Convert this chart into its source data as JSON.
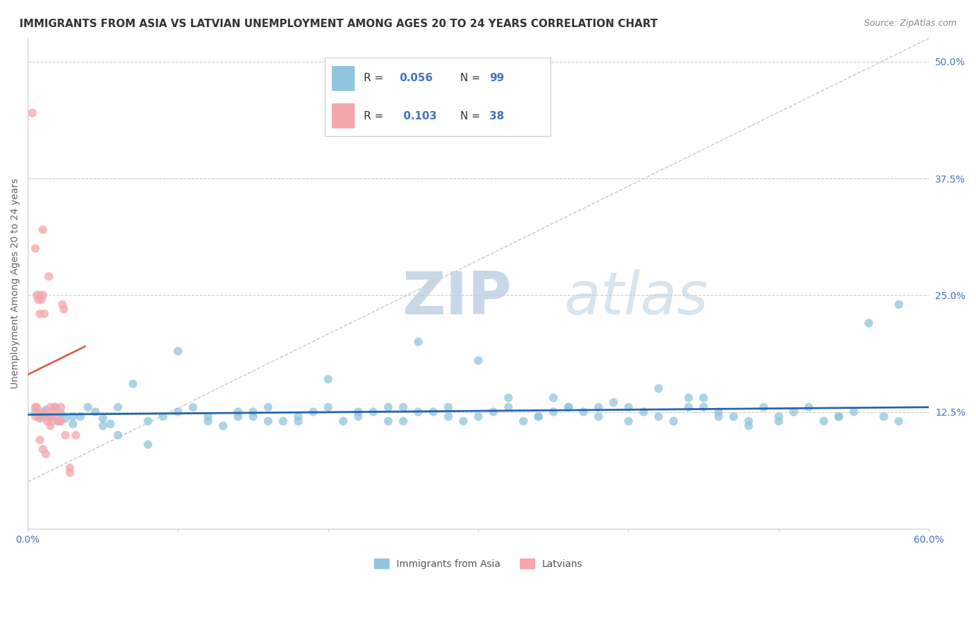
{
  "title": "IMMIGRANTS FROM ASIA VS LATVIAN UNEMPLOYMENT AMONG AGES 20 TO 24 YEARS CORRELATION CHART",
  "source_text": "Source: ZipAtlas.com",
  "ylabel": "Unemployment Among Ages 20 to 24 years",
  "xlim": [
    0.0,
    0.6
  ],
  "ylim": [
    0.0,
    0.525
  ],
  "xticks": [
    0.0,
    0.6
  ],
  "xticklabels": [
    "0.0%",
    "60.0%"
  ],
  "yticks": [
    0.125,
    0.25,
    0.375,
    0.5
  ],
  "yticklabels": [
    "12.5%",
    "25.0%",
    "37.5%",
    "50.0%"
  ],
  "legend_r_blue": "0.056",
  "legend_n_blue": "99",
  "legend_r_pink": "0.103",
  "legend_n_pink": "38",
  "blue_color": "#92c5de",
  "pink_color": "#f4a6ad",
  "blue_line_color": "#2166ac",
  "pink_line_color": "#d6604d",
  "diag_line_color": "#c8c8c8",
  "grid_color": "#cccccc",
  "watermark_zip_color": "#c8d8e8",
  "watermark_atlas_color": "#d8e4ee",
  "blue_scatter_x": [
    0.005,
    0.008,
    0.01,
    0.012,
    0.015,
    0.018,
    0.02,
    0.022,
    0.025,
    0.03,
    0.035,
    0.04,
    0.045,
    0.05,
    0.055,
    0.06,
    0.07,
    0.08,
    0.09,
    0.1,
    0.11,
    0.12,
    0.13,
    0.14,
    0.15,
    0.16,
    0.17,
    0.18,
    0.19,
    0.2,
    0.21,
    0.22,
    0.23,
    0.24,
    0.25,
    0.26,
    0.27,
    0.28,
    0.29,
    0.3,
    0.31,
    0.32,
    0.33,
    0.34,
    0.35,
    0.36,
    0.37,
    0.38,
    0.39,
    0.4,
    0.41,
    0.42,
    0.43,
    0.44,
    0.45,
    0.46,
    0.47,
    0.48,
    0.49,
    0.5,
    0.51,
    0.52,
    0.53,
    0.54,
    0.55,
    0.56,
    0.57,
    0.58,
    0.3,
    0.2,
    0.15,
    0.35,
    0.4,
    0.45,
    0.1,
    0.05,
    0.08,
    0.22,
    0.28,
    0.38,
    0.18,
    0.12,
    0.32,
    0.42,
    0.48,
    0.03,
    0.06,
    0.16,
    0.26,
    0.36,
    0.46,
    0.14,
    0.24,
    0.34,
    0.44,
    0.5,
    0.54,
    0.58,
    0.25
  ],
  "blue_scatter_y": [
    0.125,
    0.118,
    0.122,
    0.127,
    0.12,
    0.13,
    0.115,
    0.123,
    0.118,
    0.112,
    0.12,
    0.13,
    0.125,
    0.118,
    0.112,
    0.13,
    0.155,
    0.115,
    0.12,
    0.125,
    0.13,
    0.115,
    0.11,
    0.12,
    0.125,
    0.13,
    0.115,
    0.12,
    0.125,
    0.13,
    0.115,
    0.12,
    0.125,
    0.13,
    0.115,
    0.2,
    0.125,
    0.13,
    0.115,
    0.12,
    0.125,
    0.13,
    0.115,
    0.12,
    0.14,
    0.13,
    0.125,
    0.12,
    0.135,
    0.13,
    0.125,
    0.12,
    0.115,
    0.14,
    0.13,
    0.125,
    0.12,
    0.115,
    0.13,
    0.12,
    0.125,
    0.13,
    0.115,
    0.12,
    0.125,
    0.22,
    0.12,
    0.115,
    0.18,
    0.16,
    0.12,
    0.125,
    0.115,
    0.14,
    0.19,
    0.11,
    0.09,
    0.125,
    0.12,
    0.13,
    0.115,
    0.12,
    0.14,
    0.15,
    0.11,
    0.12,
    0.1,
    0.115,
    0.125,
    0.13,
    0.12,
    0.125,
    0.115,
    0.12,
    0.13,
    0.115,
    0.12,
    0.24,
    0.13
  ],
  "pink_scatter_x": [
    0.003,
    0.005,
    0.005,
    0.005,
    0.006,
    0.007,
    0.007,
    0.008,
    0.008,
    0.009,
    0.01,
    0.01,
    0.011,
    0.012,
    0.013,
    0.014,
    0.015,
    0.016,
    0.017,
    0.018,
    0.02,
    0.021,
    0.022,
    0.023,
    0.024,
    0.025,
    0.008,
    0.01,
    0.012,
    0.015,
    0.006,
    0.008,
    0.028,
    0.032,
    0.01,
    0.016,
    0.022,
    0.028
  ],
  "pink_scatter_y": [
    0.445,
    0.13,
    0.3,
    0.12,
    0.25,
    0.245,
    0.12,
    0.23,
    0.25,
    0.245,
    0.32,
    0.25,
    0.23,
    0.12,
    0.115,
    0.27,
    0.13,
    0.12,
    0.125,
    0.13,
    0.12,
    0.115,
    0.115,
    0.24,
    0.235,
    0.1,
    0.095,
    0.085,
    0.08,
    0.11,
    0.13,
    0.12,
    0.065,
    0.1,
    0.125,
    0.115,
    0.13,
    0.06
  ],
  "blue_trend_x": [
    0.0,
    0.6
  ],
  "blue_trend_y": [
    0.122,
    0.13
  ],
  "pink_trend_x": [
    0.0,
    0.038
  ],
  "pink_trend_y": [
    0.165,
    0.195
  ],
  "diag_trend_x": [
    0.0,
    0.6
  ],
  "diag_trend_y": [
    0.05,
    0.525
  ],
  "title_fontsize": 11,
  "axis_label_fontsize": 10,
  "tick_fontsize": 10,
  "legend_fontsize": 11
}
